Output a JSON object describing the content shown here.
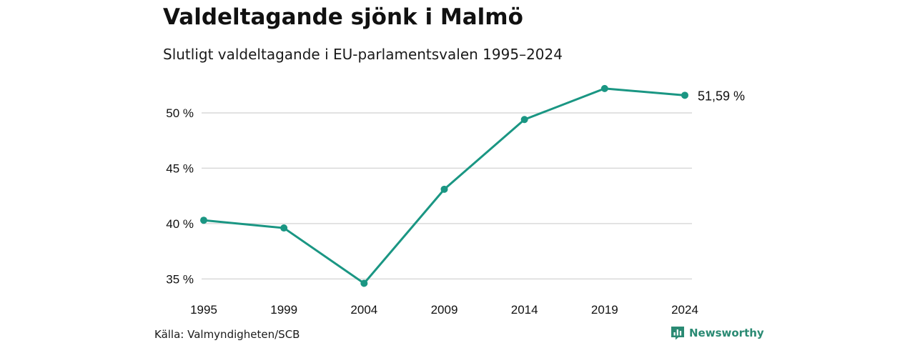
{
  "colors": {
    "line": "#1a9683",
    "grid": "#d9d9d9",
    "text": "#111111",
    "brand": "#2a8a73"
  },
  "header": {
    "title": "Valdeltagande sjönk i Malmö",
    "subtitle": "Slutligt valdeltagande i EU-parlamentsvalen 1995–2024"
  },
  "footer": {
    "source": "Källa: Valmyndigheten/SCB",
    "brand": "Newsworthy",
    "brand_icon": "bar-chart-icon"
  },
  "chart_data": {
    "type": "line",
    "title": "Valdeltagande sjönk i Malmö",
    "subtitle": "Slutligt valdeltagande i EU-parlamentsvalen 1995–2024",
    "x": [
      "1995",
      "1999",
      "2004",
      "2009",
      "2014",
      "2019",
      "2024"
    ],
    "series": [
      {
        "values": [
          40.3,
          39.6,
          34.6,
          43.1,
          49.4,
          52.2,
          51.59
        ]
      }
    ],
    "y_ticks": [
      35,
      40,
      45,
      50
    ],
    "y_tick_labels": [
      "35 %",
      "40 %",
      "45 %",
      "50 %"
    ],
    "ylim": [
      33.6,
      54.0
    ],
    "grid": true,
    "end_label": "51,59 %",
    "xlabel": "",
    "ylabel": ""
  }
}
